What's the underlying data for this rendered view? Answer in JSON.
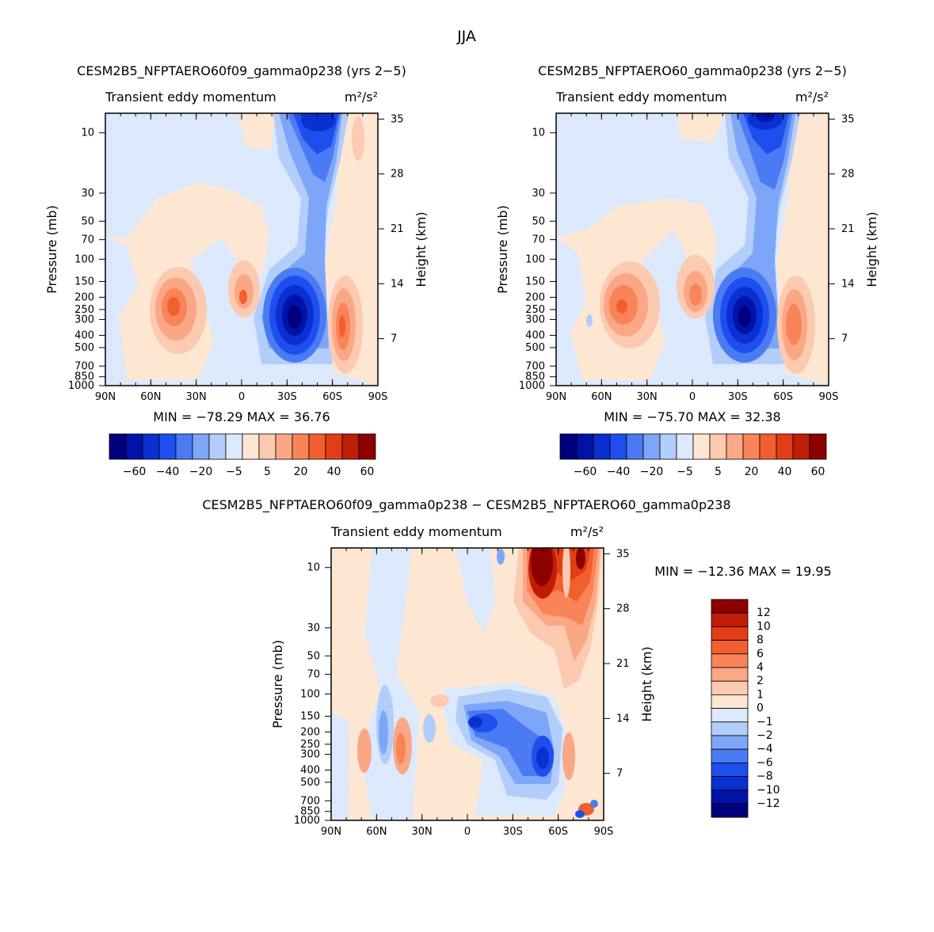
{
  "figure_title": "JJA",
  "chart_data": [
    {
      "type": "heatmap",
      "title": "CESM2B5_NFPTAERO60f09_gamma0p238 (yrs 2−5)",
      "subtitle_left": "Transient eddy momentum",
      "units": "m²/s²",
      "xlabel": "",
      "ylabel": "Pressure (mb)",
      "ylabel_right": "Height (km)",
      "x_ticks": [
        "90N",
        "60N",
        "30N",
        "0",
        "30S",
        "60S",
        "90S"
      ],
      "y_ticks": [
        "10",
        "30",
        "50",
        "70",
        "100",
        "150",
        "200",
        "250",
        "300",
        "400",
        "500",
        "700",
        "850",
        "1000"
      ],
      "y_ticks_right": [
        "35",
        "28",
        "21",
        "14",
        "7"
      ],
      "stats": "MIN = −78.29   MAX =  36.76",
      "min": -78.29,
      "max": 36.76,
      "colorbar_labels": [
        "−60",
        "−40",
        "−20",
        "−5",
        "5",
        "20",
        "40",
        "60"
      ],
      "levels": [
        -70,
        -60,
        -50,
        -40,
        -30,
        -20,
        -10,
        -5,
        0,
        5,
        10,
        20,
        30,
        40,
        50,
        60,
        70
      ]
    },
    {
      "type": "heatmap",
      "title": "CESM2B5_NFPTAERO60_gamma0p238 (yrs 2−5)",
      "subtitle_left": "Transient eddy momentum",
      "units": "m²/s²",
      "xlabel": "",
      "ylabel": "Pressure (mb)",
      "ylabel_right": "Height (km)",
      "x_ticks": [
        "90N",
        "60N",
        "30N",
        "0",
        "30S",
        "60S",
        "90S"
      ],
      "y_ticks": [
        "10",
        "30",
        "50",
        "70",
        "100",
        "150",
        "200",
        "250",
        "300",
        "400",
        "500",
        "700",
        "850",
        "1000"
      ],
      "y_ticks_right": [
        "35",
        "28",
        "21",
        "14",
        "7"
      ],
      "stats": "MIN = −75.70   MAX =  32.38",
      "min": -75.7,
      "max": 32.38,
      "colorbar_labels": [
        "−60",
        "−40",
        "−20",
        "−5",
        "5",
        "20",
        "40",
        "60"
      ],
      "levels": [
        -70,
        -60,
        -50,
        -40,
        -30,
        -20,
        -10,
        -5,
        0,
        5,
        10,
        20,
        30,
        40,
        50,
        60,
        70
      ]
    },
    {
      "type": "heatmap",
      "title": "CESM2B5_NFPTAERO60f09_gamma0p238 − CESM2B5_NFPTAERO60_gamma0p238",
      "subtitle_left": "Transient eddy momentum",
      "units": "m²/s²",
      "xlabel": "",
      "ylabel": "Pressure (mb)",
      "ylabel_right": "Height (km)",
      "x_ticks": [
        "90N",
        "60N",
        "30N",
        "0",
        "30S",
        "60S",
        "90S"
      ],
      "y_ticks": [
        "10",
        "30",
        "50",
        "70",
        "100",
        "150",
        "200",
        "250",
        "300",
        "400",
        "500",
        "700",
        "850",
        "1000"
      ],
      "y_ticks_right": [
        "35",
        "28",
        "21",
        "14",
        "7"
      ],
      "stats": "MIN = −12.36   MAX =  19.95",
      "min": -12.36,
      "max": 19.95,
      "colorbar_labels": [
        "12",
        "10",
        "8",
        "6",
        "4",
        "2",
        "1",
        "0",
        "−1",
        "−2",
        "−4",
        "−6",
        "−8",
        "−10",
        "−12"
      ],
      "levels": [
        -14,
        -12,
        -10,
        -8,
        -6,
        -4,
        -2,
        -1,
        0,
        1,
        2,
        4,
        6,
        8,
        10,
        12,
        14
      ]
    }
  ],
  "palette": [
    "#00007f",
    "#0012a8",
    "#0a30d2",
    "#1e4fee",
    "#4a7bf4",
    "#7ea6f8",
    "#b3cdfb",
    "#dce9fc",
    "#fde6d2",
    "#fccab0",
    "#faa786",
    "#f88458",
    "#f25f2f",
    "#e23d16",
    "#bf1d05",
    "#8c0000"
  ]
}
